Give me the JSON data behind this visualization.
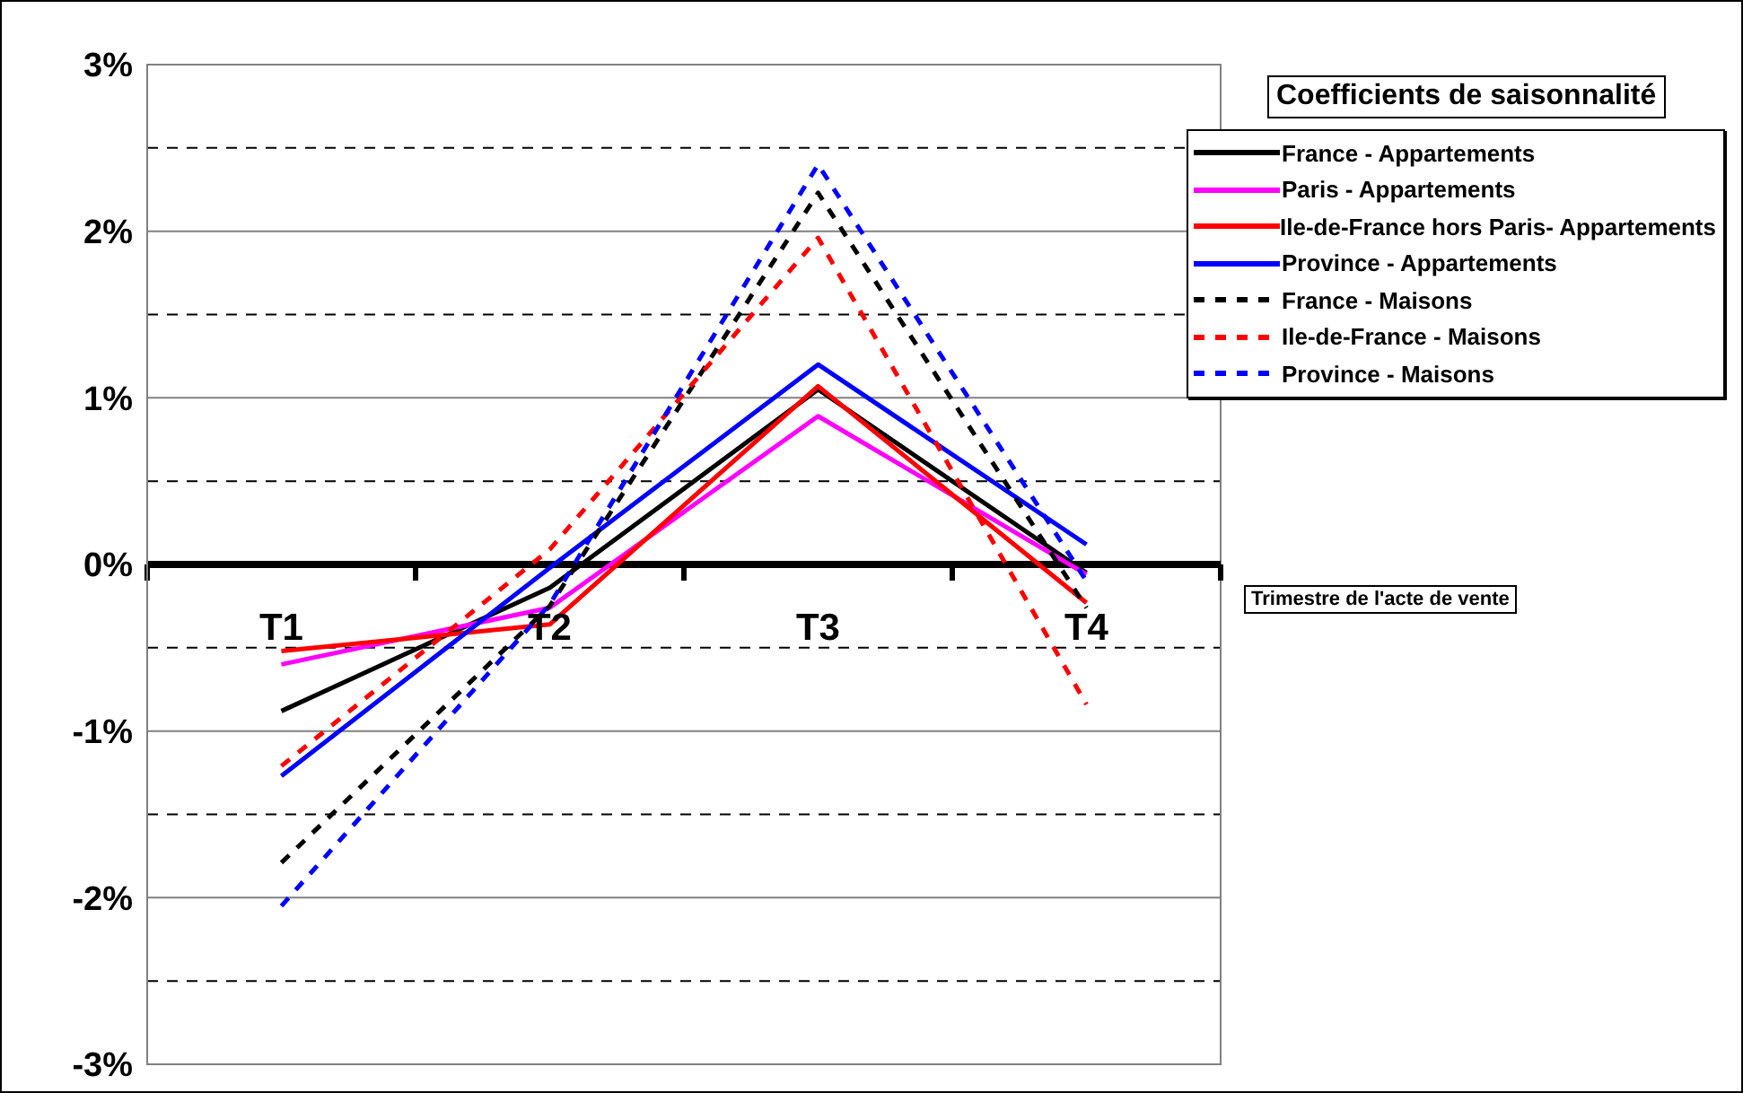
{
  "chart_data": {
    "type": "line",
    "legend_title": "Coefficients de saisonnalité",
    "xlabel": "Trimestre de l'acte de vente",
    "categories": [
      "T1",
      "T2",
      "T3",
      "T4"
    ],
    "series": [
      {
        "name": "France - Appartements",
        "color": "#000000",
        "line_style": "solid",
        "values": [
          -0.88,
          -0.14,
          1.05,
          -0.05
        ]
      },
      {
        "name": "Paris - Appartements",
        "color": "#ff00ff",
        "line_style": "solid",
        "values": [
          -0.6,
          -0.26,
          0.89,
          -0.06
        ]
      },
      {
        "name": "Ile-de-France hors Paris- Appartements",
        "color": "#ff0000",
        "line_style": "solid",
        "values": [
          -0.52,
          -0.36,
          1.07,
          -0.23
        ]
      },
      {
        "name": "Province - Appartements",
        "color": "#0000ff",
        "line_style": "solid",
        "values": [
          -1.27,
          -0.02,
          1.2,
          0.12
        ]
      },
      {
        "name": "France - Maisons",
        "color": "#000000",
        "line_style": "dashed",
        "values": [
          -1.79,
          -0.25,
          2.23,
          -0.26
        ]
      },
      {
        "name": "Ile-de-France - Maisons",
        "color": "#ff0000",
        "line_style": "dashed",
        "values": [
          -1.21,
          0.09,
          1.96,
          -0.84
        ]
      },
      {
        "name": "Province - Maisons",
        "color": "#0000ff",
        "line_style": "dashed",
        "values": [
          -2.05,
          -0.24,
          2.4,
          -0.1
        ]
      }
    ],
    "ylim": [
      -3,
      3
    ],
    "yticks": [
      {
        "value": -3,
        "label": "-3%"
      },
      {
        "value": -2.5,
        "label": null
      },
      {
        "value": -2,
        "label": "-2%"
      },
      {
        "value": -1.5,
        "label": null
      },
      {
        "value": -1,
        "label": "-1%"
      },
      {
        "value": -0.5,
        "label": null
      },
      {
        "value": 0,
        "label": "0%"
      },
      {
        "value": 0.5,
        "label": null
      },
      {
        "value": 1,
        "label": "1%"
      },
      {
        "value": 1.5,
        "label": null
      },
      {
        "value": 2,
        "label": "2%"
      },
      {
        "value": 2.5,
        "label": null
      },
      {
        "value": 3,
        "label": "3%"
      }
    ],
    "grid": "y",
    "legend": "top right",
    "marker": "none"
  }
}
